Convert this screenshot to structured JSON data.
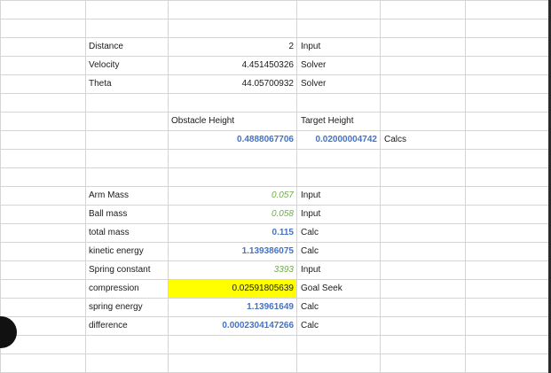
{
  "rows": [
    {
      "b": "Distance",
      "c": "2",
      "d": "Input"
    },
    {
      "b": "Velocity",
      "c": "4.451450326",
      "d": "Solver"
    },
    {
      "b": "Theta",
      "c": "44.05700932",
      "d": "Solver"
    },
    {
      "c": "Obstacle Height",
      "d": "Target Height"
    },
    {
      "c": "0.4888067706",
      "d": "0.02000004742",
      "e": "Calcs"
    },
    {
      "b": "Arm Mass",
      "c": "0.057",
      "d": "Input"
    },
    {
      "b": "Ball mass",
      "c": "0.058",
      "d": "Input"
    },
    {
      "b": "total mass",
      "c": "0.115",
      "d": "Calc"
    },
    {
      "b": "kinetic energy",
      "c": "1.139386075",
      "d": "Calc"
    },
    {
      "b": "Spring constant",
      "c": "3393",
      "d": "Input"
    },
    {
      "b": "compression",
      "c": "0.02591805639",
      "d": "Goal Seek"
    },
    {
      "b": "spring energy",
      "c": "1.13961649",
      "d": "Calc"
    },
    {
      "b": "difference",
      "c": "0.0002304147266",
      "d": "Calc"
    }
  ],
  "colors": {
    "formula_blue": "#4472c4",
    "input_green": "#70ad47",
    "goal_highlight": "#ffff00"
  }
}
